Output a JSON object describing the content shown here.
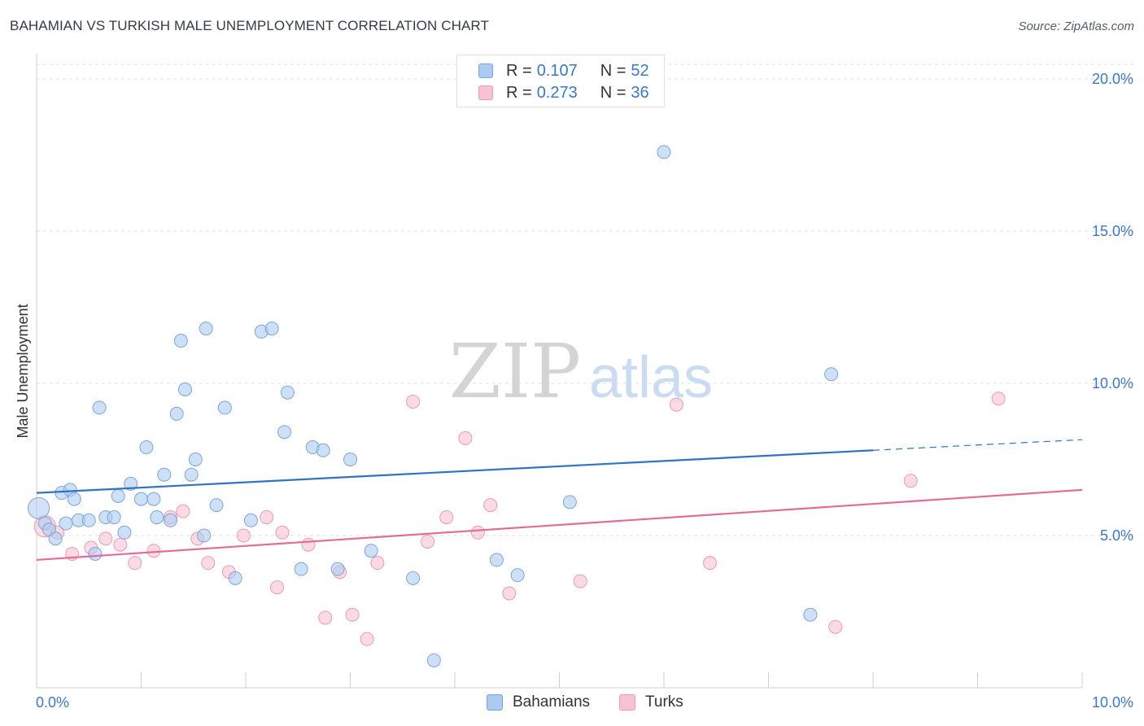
{
  "header": {
    "title": "BAHAMIAN VS TURKISH MALE UNEMPLOYMENT CORRELATION CHART",
    "source": "Source: ZipAtlas.com"
  },
  "watermark": {
    "zip": "ZIP",
    "atlas": "atlas"
  },
  "legend_top": {
    "rows": [
      {
        "r_label": "R =",
        "r_value": "0.107",
        "n_label": "N =",
        "n_value": "52"
      },
      {
        "r_label": "R =",
        "r_value": "0.273",
        "n_label": "N =",
        "n_value": "36"
      }
    ]
  },
  "legend_bottom": {
    "items": [
      {
        "label": "Bahamians"
      },
      {
        "label": "Turks"
      }
    ]
  },
  "colors": {
    "blue_fill": "#aecbef",
    "blue_stroke": "#7aa5dc",
    "blue_line": "#2f73c9",
    "pink_fill": "#f7c3d3",
    "pink_stroke": "#eb9ab5",
    "pink_line": "#e46b96",
    "tick_label": "#3a78c9",
    "grid": "#dddddd"
  },
  "chart_data": {
    "type": "scatter",
    "title": "BAHAMIAN VS TURKISH MALE UNEMPLOYMENT CORRELATION CHART",
    "xlabel": "",
    "ylabel": "Male Unemployment",
    "xlim": [
      0,
      10
    ],
    "ylim": [
      0,
      20
    ],
    "x_tick_labels": [
      "0.0%",
      "10.0%"
    ],
    "y_ticks": [
      5,
      10,
      15,
      20
    ],
    "y_tick_labels": [
      "5.0%",
      "10.0%",
      "15.0%",
      "20.0%"
    ],
    "grid": true,
    "legend_placement": "top-center",
    "series": [
      {
        "name": "Bahamians",
        "color": "#aecbef",
        "r": 0.107,
        "n": 52,
        "trend": {
          "x": [
            0,
            8.0
          ],
          "y": [
            6.4,
            7.8
          ],
          "dashed_to": [
            10.0,
            8.15
          ]
        },
        "points": [
          [
            0.02,
            5.9
          ],
          [
            0.08,
            5.4
          ],
          [
            0.12,
            5.2
          ],
          [
            0.18,
            4.9
          ],
          [
            0.24,
            6.4
          ],
          [
            0.32,
            6.5
          ],
          [
            0.4,
            5.5
          ],
          [
            0.5,
            5.5
          ],
          [
            0.56,
            4.4
          ],
          [
            0.66,
            5.6
          ],
          [
            0.74,
            5.6
          ],
          [
            0.78,
            6.3
          ],
          [
            0.84,
            5.1
          ],
          [
            0.9,
            6.7
          ],
          [
            1.0,
            6.2
          ],
          [
            1.05,
            7.9
          ],
          [
            1.12,
            6.2
          ],
          [
            1.15,
            5.6
          ],
          [
            1.22,
            7.0
          ],
          [
            1.28,
            5.5
          ],
          [
            1.34,
            9.0
          ],
          [
            1.38,
            11.4
          ],
          [
            1.42,
            9.8
          ],
          [
            1.48,
            7.0
          ],
          [
            1.52,
            7.5
          ],
          [
            1.62,
            11.8
          ],
          [
            1.72,
            6.0
          ],
          [
            1.9,
            3.6
          ],
          [
            2.05,
            5.5
          ],
          [
            2.15,
            11.7
          ],
          [
            2.25,
            11.8
          ],
          [
            2.37,
            8.4
          ],
          [
            2.4,
            9.7
          ],
          [
            2.53,
            3.9
          ],
          [
            2.64,
            7.9
          ],
          [
            2.74,
            7.8
          ],
          [
            2.88,
            3.9
          ],
          [
            3.0,
            7.5
          ],
          [
            3.2,
            4.5
          ],
          [
            3.6,
            3.6
          ],
          [
            3.8,
            0.9
          ],
          [
            4.4,
            4.2
          ],
          [
            4.6,
            3.7
          ],
          [
            5.1,
            6.1
          ],
          [
            6.0,
            17.6
          ],
          [
            7.4,
            2.4
          ],
          [
            7.6,
            10.3
          ],
          [
            0.36,
            6.2
          ],
          [
            0.6,
            9.2
          ],
          [
            1.8,
            9.2
          ],
          [
            0.28,
            5.4
          ],
          [
            1.6,
            5.0
          ]
        ]
      },
      {
        "name": "Turks",
        "color": "#f7c3d3",
        "r": 0.273,
        "n": 36,
        "trend": {
          "x": [
            0,
            10.0
          ],
          "y": [
            4.2,
            6.5
          ]
        },
        "points": [
          [
            0.08,
            5.3
          ],
          [
            0.34,
            4.4
          ],
          [
            0.52,
            4.6
          ],
          [
            0.66,
            4.9
          ],
          [
            0.8,
            4.7
          ],
          [
            0.94,
            4.1
          ],
          [
            1.12,
            4.5
          ],
          [
            1.28,
            5.6
          ],
          [
            1.4,
            5.8
          ],
          [
            1.54,
            4.9
          ],
          [
            1.64,
            4.1
          ],
          [
            1.84,
            3.8
          ],
          [
            1.98,
            5.0
          ],
          [
            2.2,
            5.6
          ],
          [
            2.3,
            3.3
          ],
          [
            2.35,
            5.1
          ],
          [
            2.6,
            4.7
          ],
          [
            2.76,
            2.3
          ],
          [
            2.9,
            3.8
          ],
          [
            3.02,
            2.4
          ],
          [
            3.16,
            1.6
          ],
          [
            3.26,
            4.1
          ],
          [
            3.6,
            9.4
          ],
          [
            3.74,
            4.8
          ],
          [
            3.92,
            5.6
          ],
          [
            4.1,
            8.2
          ],
          [
            4.22,
            5.1
          ],
          [
            4.34,
            6.0
          ],
          [
            4.52,
            3.1
          ],
          [
            5.2,
            3.5
          ],
          [
            6.12,
            9.3
          ],
          [
            6.44,
            4.1
          ],
          [
            7.64,
            2.0
          ],
          [
            8.36,
            6.8
          ],
          [
            9.2,
            9.5
          ],
          [
            0.2,
            5.1
          ]
        ]
      }
    ]
  }
}
